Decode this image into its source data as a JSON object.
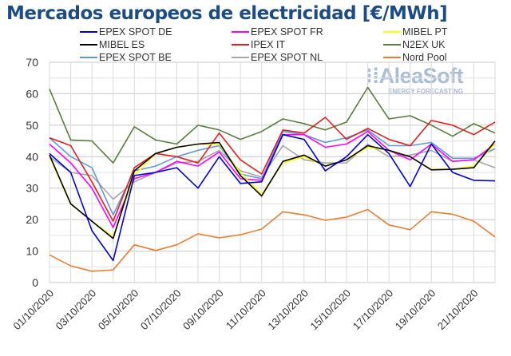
{
  "chart_data": {
    "type": "line",
    "title": "Mercados europeos de electricidad [€/MWh]",
    "xlabel": "",
    "ylabel": "",
    "ylim": [
      0,
      70
    ],
    "yticks": [
      "0",
      "10",
      "20",
      "30",
      "40",
      "50",
      "60",
      "70"
    ],
    "grid": true,
    "legend_position": "top",
    "x": [
      "01/10/2020",
      "02/10/2020",
      "03/10/2020",
      "04/10/2020",
      "05/10/2020",
      "06/10/2020",
      "07/10/2020",
      "08/10/2020",
      "09/10/2020",
      "10/10/2020",
      "11/10/2020",
      "12/10/2020",
      "13/10/2020",
      "14/10/2020",
      "15/10/2020",
      "16/10/2020",
      "17/10/2020",
      "18/10/2020",
      "19/10/2020",
      "20/10/2020",
      "21/10/2020",
      "22/10/2020"
    ],
    "xtick_labels": [
      "01/10/2020",
      "03/10/2020",
      "05/10/2020",
      "07/10/2020",
      "09/10/2020",
      "11/10/2020",
      "13/10/2020",
      "15/10/2020",
      "17/10/2020",
      "19/10/2020",
      "21/10/2020"
    ],
    "series": [
      {
        "name": "EPEX SPOT DE",
        "color": "#0000e0",
        "values": [
          41,
          35,
          16.5,
          7,
          34,
          35,
          36.5,
          30,
          40,
          31.5,
          32,
          47,
          45.5,
          35.5,
          40,
          47,
          41,
          30.5,
          44,
          35,
          32.5,
          32.3
        ]
      },
      {
        "name": "EPEX SPOT FR",
        "color": "#ff00ff",
        "values": [
          44,
          38,
          30,
          17.5,
          33,
          35,
          38.5,
          37,
          41.5,
          33,
          32.5,
          47,
          47,
          43,
          44,
          48,
          42,
          39,
          44,
          38.5,
          39,
          44
        ]
      },
      {
        "name": "MIBEL PT",
        "color": "#ffff00",
        "values": [
          40,
          25,
          19.5,
          14.5,
          34,
          41,
          43,
          44,
          44,
          35,
          28,
          38,
          40,
          37,
          39,
          43,
          42,
          40,
          36,
          36,
          37,
          44
        ]
      },
      {
        "name": "MIBEL ES",
        "color": "#000000",
        "values": [
          40.5,
          25,
          19.5,
          14,
          35.5,
          41,
          43,
          44,
          44.5,
          34,
          27.5,
          38.5,
          40.5,
          37,
          39,
          43.5,
          42,
          40,
          35.8,
          36,
          36.5,
          45
        ]
      },
      {
        "name": "IPEX IT",
        "color": "#e81c1c",
        "values": [
          46,
          43.5,
          32,
          19.5,
          36.5,
          41,
          40,
          38,
          47.5,
          39,
          34.5,
          48.5,
          47.5,
          52.5,
          45.5,
          49,
          45.5,
          43.5,
          51.5,
          50,
          47,
          51
        ]
      },
      {
        "name": "N2EX UK",
        "color": "#5a7f3c",
        "values": [
          61.5,
          45.3,
          45,
          38,
          49.5,
          45.3,
          44,
          50,
          48.5,
          45.5,
          48,
          52,
          50.5,
          48.5,
          51,
          62,
          52,
          53,
          50,
          46.5,
          50.5,
          47.5
        ]
      },
      {
        "name": "EPEX SPOT BE",
        "color": "#5b9bd5",
        "values": [
          46,
          40,
          36.5,
          21.5,
          35.5,
          37,
          40,
          42,
          43.5,
          34.5,
          33,
          48,
          47,
          44.5,
          46,
          48.5,
          43.5,
          43.5,
          44.5,
          39.5,
          39.5,
          42.5
        ]
      },
      {
        "name": "EPEX SPOT NL",
        "color": "#a6a6a6",
        "values": [
          40,
          35,
          34,
          26.5,
          32,
          35,
          38,
          38.5,
          42,
          35.5,
          33.5,
          43.5,
          39,
          38,
          38,
          44,
          40,
          40.5,
          42,
          38.5,
          39,
          36.5
        ]
      },
      {
        "name": "Nord Pool",
        "color": "#ed7d31",
        "values": [
          8.8,
          5.3,
          3.6,
          4,
          12,
          10.2,
          12,
          15.5,
          14.2,
          15.2,
          17,
          22.5,
          21.5,
          19.8,
          20.8,
          23.2,
          18.3,
          16.8,
          22.5,
          21.7,
          19.5,
          14.5
        ]
      }
    ]
  },
  "logo": {
    "name": "AleaSoft",
    "tagline": "ENERGY FORECASTING"
  }
}
